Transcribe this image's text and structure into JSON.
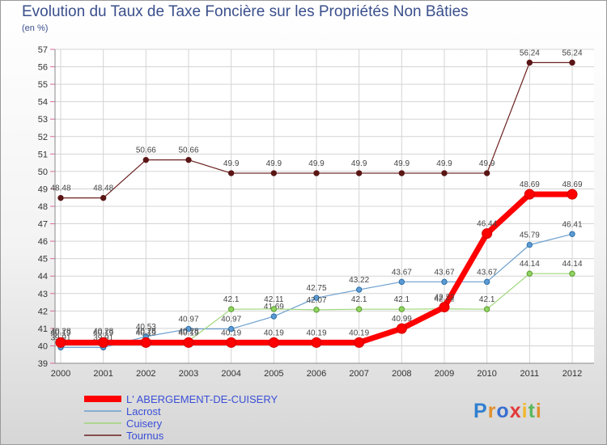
{
  "title": "Evolution du Taux de Taxe Foncière sur les Propriétés Non Bâties",
  "subtitle": "(en %)",
  "logo": {
    "text": "Proxiti",
    "colors": [
      "#2f7fcf",
      "#e0902c",
      "#3a6fd0",
      "#e23b3b",
      "#f2b72a",
      "#5cb85c",
      "#e0902c"
    ]
  },
  "chart_data": {
    "type": "line",
    "x": [
      "2000",
      "2001",
      "2002",
      "2003",
      "2004",
      "2005",
      "2006",
      "2007",
      "2008",
      "2009",
      "2010",
      "2011",
      "2012"
    ],
    "ylim": [
      39,
      57
    ],
    "yticks": [
      39,
      40,
      41,
      42,
      43,
      44,
      45,
      46,
      47,
      48,
      49,
      50,
      51,
      52,
      53,
      54,
      55,
      56,
      57
    ],
    "grid": true,
    "legend": "bottom-left",
    "series": [
      {
        "name": "Tournus",
        "color": "#6b2020",
        "values": [
          48.48,
          48.48,
          50.66,
          50.66,
          49.9,
          49.9,
          49.9,
          49.9,
          49.9,
          49.9,
          49.9,
          56.24,
          56.24
        ],
        "labels": [
          "48.48",
          "48.48",
          "50.66",
          "50.66",
          "49.9",
          "49.9",
          "49.9",
          "49.9",
          "49.9",
          "49.9",
          "49.9",
          "56.24",
          "56.24"
        ]
      },
      {
        "name": "Lacrost",
        "color": "#6b9fcf",
        "values": [
          39.91,
          39.91,
          40.53,
          40.97,
          40.97,
          41.69,
          42.75,
          43.22,
          43.67,
          43.67,
          43.67,
          45.79,
          46.41
        ],
        "labels": [
          "39.91",
          "39.91",
          "40.53",
          "40.97",
          "40.97",
          "41.69",
          "42.75",
          "43.22",
          "43.67",
          "43.67",
          "43.67",
          "45.79",
          "46.41"
        ]
      },
      {
        "name": "Cuisery",
        "color": "#9fd67a",
        "values": [
          40.28,
          40.28,
          40.28,
          40.28,
          42.1,
          42.11,
          42.07,
          42.1,
          42.1,
          42.12,
          42.1,
          44.14,
          44.14
        ],
        "labels": [
          "40.28",
          "40.28",
          "40.28",
          "40.28",
          "42.1",
          "42.11",
          "42.07",
          "42.1",
          "42.1",
          "42.12",
          "42.1",
          "44.14",
          "44.14"
        ]
      },
      {
        "name": "L' ABERGEMENT-DE-CUISERY",
        "color": "#ff0000",
        "values": [
          40.19,
          40.19,
          40.19,
          40.19,
          40.19,
          40.19,
          40.19,
          40.19,
          40.99,
          42.22,
          46.44,
          48.69,
          48.69
        ],
        "labels": [
          "40.19",
          "40.19",
          "40.19",
          "40.19",
          "40.19",
          "40.19",
          "40.19",
          "40.19",
          "40.99",
          "42.22",
          "46.44",
          "48.69",
          "48.69"
        ]
      }
    ],
    "legend_order": [
      "L' ABERGEMENT-DE-CUISERY",
      "Lacrost",
      "Cuisery",
      "Tournus"
    ]
  }
}
